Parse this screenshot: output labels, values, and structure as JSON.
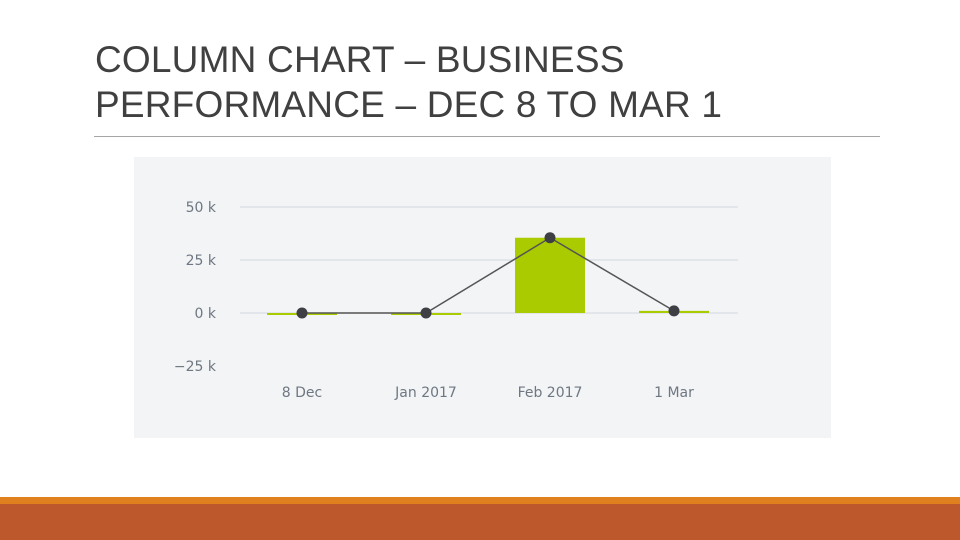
{
  "slide": {
    "title": "COLUMN CHART – BUSINESS PERFORMANCE – DEC 8 TO MAR 1"
  },
  "colors": {
    "bar": "#a9cb00",
    "line": "#555555",
    "marker": "#3d3f44",
    "grid": "#dde1e6",
    "footer_accent": "#e0801f",
    "footer_bar": "#bd582c"
  },
  "chart_data": {
    "type": "bar",
    "categories": [
      "8 Dec",
      "Jan 2017",
      "Feb 2017",
      "1 Mar"
    ],
    "series": [
      {
        "kind": "bar",
        "values": [
          0,
          0,
          35500,
          1000
        ]
      },
      {
        "kind": "line",
        "values": [
          0,
          0,
          35500,
          1000
        ]
      }
    ],
    "y_ticks": [
      50000,
      25000,
      0,
      -25000
    ],
    "y_tick_labels": [
      "50 k",
      "25 k",
      "0 k",
      "−25 k"
    ],
    "ylim": [
      -25000,
      50000
    ],
    "grid": true,
    "xlabel": "",
    "ylabel": ""
  }
}
